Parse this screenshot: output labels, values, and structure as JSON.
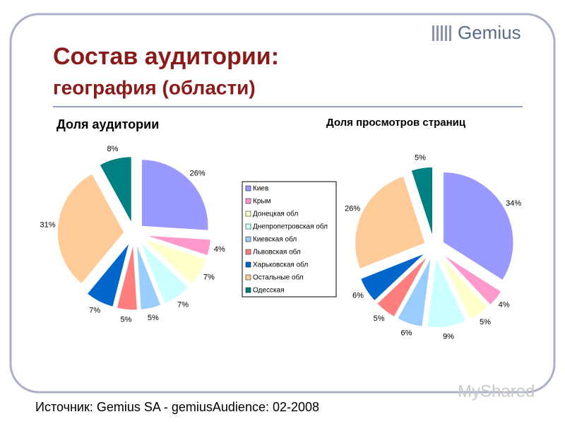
{
  "slide": {
    "title_line1": "Состав аудитории:",
    "title_line2": "география (области)",
    "logo": "Gemius",
    "source": "Источник: Gemius SA - gemiusAudience: 02-2008",
    "watermark": "MyShared"
  },
  "chart_data": [
    {
      "type": "pie",
      "title": "Доля аудитории",
      "categories": [
        "Киев",
        "Крым",
        "Донецкая обл",
        "Днепропетровская обл",
        "Киевская обл",
        "Львовская обл",
        "Харьковская обл",
        "Остальные обл",
        "Одесская"
      ],
      "values": [
        26,
        4,
        7,
        7,
        5,
        5,
        7,
        31,
        8
      ],
      "value_labels": [
        "26%",
        "4%",
        "7%",
        "7%",
        "5%",
        "5%",
        "7%",
        "31%",
        "8%"
      ],
      "colors": [
        "#9999ff",
        "#ff99cc",
        "#ffffcc",
        "#ccffff",
        "#99ccff",
        "#ff7f7f",
        "#0066cc",
        "#ffcc99",
        "#008080"
      ]
    },
    {
      "type": "pie",
      "title": "Доля просмотров страниц",
      "categories": [
        "Киев",
        "Крым",
        "Донецкая обл",
        "Днепропетровская обл",
        "Киевская обл",
        "Львовская обл",
        "Харьковская обл",
        "Остальные обл",
        "Одесская"
      ],
      "values": [
        34,
        4,
        5,
        9,
        6,
        5,
        6,
        26,
        5
      ],
      "value_labels": [
        "34%",
        "4%",
        "5%",
        "9%",
        "6%",
        "5%",
        "6%",
        "26%",
        "5%"
      ],
      "colors": [
        "#9999ff",
        "#ff99cc",
        "#ffffcc",
        "#ccffff",
        "#99ccff",
        "#ff7f7f",
        "#0066cc",
        "#ffcc99",
        "#008080"
      ]
    }
  ]
}
